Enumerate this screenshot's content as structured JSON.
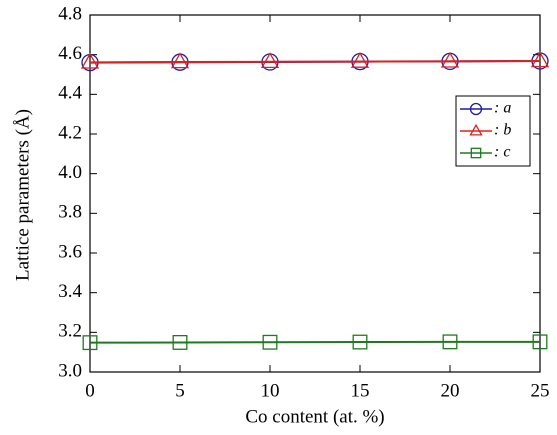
{
  "chart_data": {
    "type": "line",
    "x_label": "Co content (at. %)",
    "y_label": "Lattice parameters (Å)",
    "x": [
      0,
      5,
      10,
      15,
      20,
      25
    ],
    "xlim": [
      0,
      25
    ],
    "xticks": [
      0,
      5,
      10,
      15,
      20,
      25
    ],
    "ylim": [
      3,
      4.8
    ],
    "yticks": [
      {
        "value": 3,
        "label": "3.0"
      },
      3.2,
      3.4,
      3.6,
      3.8,
      {
        "value": 4,
        "label": "4.0"
      },
      4.2,
      4.4,
      4.6,
      4.8
    ],
    "legend": "upper right",
    "series": [
      {
        "name": ": a",
        "color": "#1c1ca8",
        "marker": "circle",
        "values": [
          4.56,
          4.562,
          4.563,
          4.565,
          4.566,
          4.568
        ]
      },
      {
        "name": ": b",
        "color": "#e0201c",
        "marker": "triangle",
        "values": [
          4.561,
          4.563,
          4.564,
          4.565,
          4.566,
          4.568
        ]
      },
      {
        "name": ": c",
        "color": "#1e7a1e",
        "marker": "square",
        "values": [
          3.148,
          3.149,
          3.15,
          3.151,
          3.152,
          3.152
        ]
      }
    ]
  }
}
